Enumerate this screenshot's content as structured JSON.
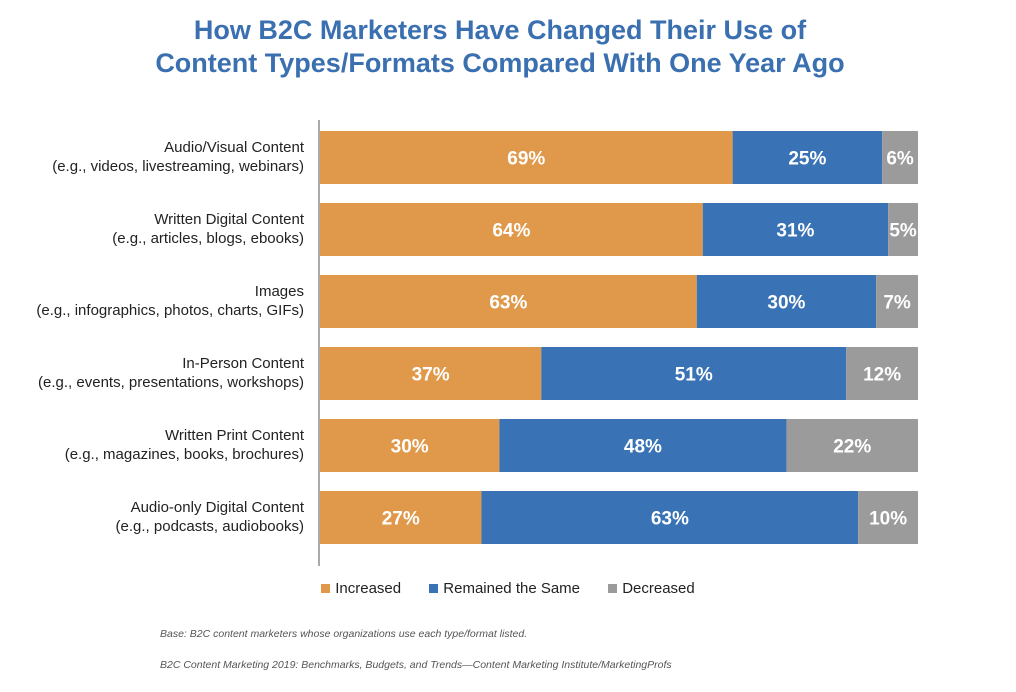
{
  "title_lines": [
    "How B2C Marketers Have Changed Their Use of",
    "Content Types/Formats Compared With One Year Ago"
  ],
  "colors": {
    "increased": "#e0994b",
    "same": "#3a73b5",
    "decreased": "#9b9b9b",
    "title": "#3a6fb0"
  },
  "chart_data": {
    "type": "bar",
    "orientation": "horizontal",
    "stacked": true,
    "categories": [
      [
        "Audio/Visual Content",
        "(e.g., videos, livestreaming, webinars)"
      ],
      [
        "Written Digital Content",
        "(e.g., articles, blogs, ebooks)"
      ],
      [
        "Images",
        "(e.g., infographics, photos, charts, GIFs)"
      ],
      [
        "In-Person Content",
        "(e.g., events, presentations, workshops)"
      ],
      [
        "Written Print Content",
        "(e.g., magazines, books, brochures)"
      ],
      [
        "Audio-only Digital Content",
        "(e.g., podcasts, audiobooks)"
      ]
    ],
    "series": [
      {
        "name": "Increased",
        "values": [
          69,
          64,
          63,
          37,
          30,
          27
        ],
        "labels": [
          "69%",
          "64%",
          "63%",
          "37%",
          "30%",
          "27%"
        ]
      },
      {
        "name": "Remained the Same",
        "values": [
          25,
          31,
          30,
          51,
          48,
          63
        ],
        "labels": [
          "25%",
          "31%",
          "30%",
          "51%",
          "48%",
          "63%"
        ]
      },
      {
        "name": "Decreased",
        "values": [
          6,
          5,
          7,
          12,
          22,
          10
        ],
        "labels": [
          "6%",
          "5%",
          "7%",
          "12%",
          "22%",
          "10%"
        ]
      }
    ],
    "xlim": [
      0,
      100
    ],
    "legend_position": "bottom"
  },
  "legend": {
    "increased": "Increased",
    "same": "Remained the Same",
    "decreased": "Decreased"
  },
  "footnotes": {
    "base": "Base: B2C content marketers whose organizations use each type/format listed.",
    "source": "B2C Content Marketing 2019: Benchmarks, Budgets, and Trends—Content Marketing Institute/MarketingProfs"
  }
}
